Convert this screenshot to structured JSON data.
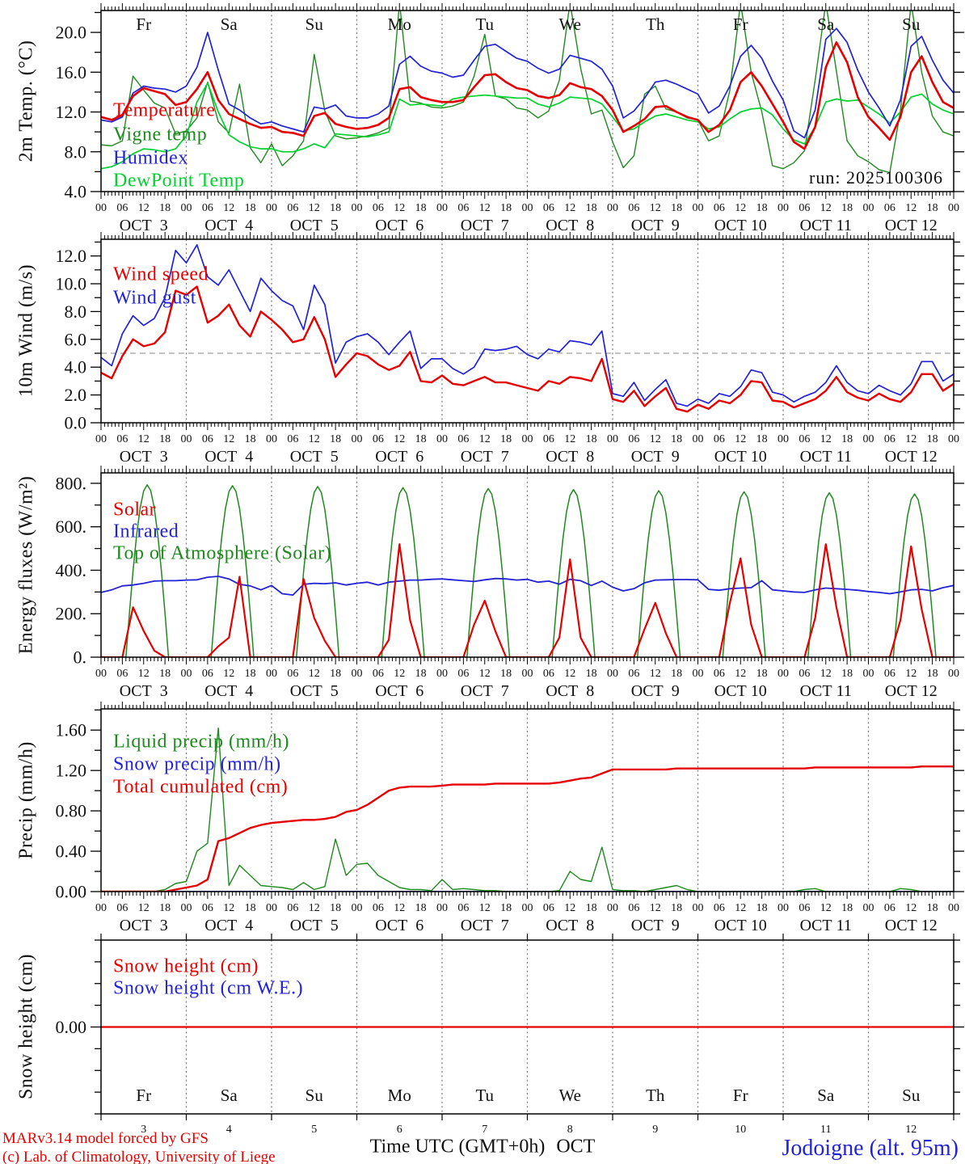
{
  "run_label": "run: 2025100306",
  "colors": {
    "red": "#e60000",
    "blue": "#2222d6",
    "dark_green": "#1e8a1e",
    "light_green": "#00d22d",
    "black": "#111111",
    "grid_gray": "#a0a0a0",
    "day_line": "#777777"
  },
  "footer": {
    "credit1": "MARv3.14 model forced by GFS",
    "credit2": "(c) Lab. of Climatology, University of Liege",
    "time_label": "Time UTC (GMT+0h)",
    "month": "OCT",
    "station": "Jodoigne (alt. 95m)"
  },
  "x_axis": {
    "total_hours": 240,
    "step_hours": 3,
    "hour_labels": [
      "00",
      "06",
      "12",
      "18"
    ],
    "end_label": "00",
    "days": [
      {
        "dow": "Fr",
        "date": "OCT  3",
        "num": "3",
        "weekend": false
      },
      {
        "dow": "Sa",
        "date": "OCT  4",
        "num": "4",
        "weekend": true
      },
      {
        "dow": "Su",
        "date": "OCT  5",
        "num": "5",
        "weekend": true
      },
      {
        "dow": "Mo",
        "date": "OCT  6",
        "num": "6",
        "weekend": false
      },
      {
        "dow": "Tu",
        "date": "OCT  7",
        "num": "7",
        "weekend": false
      },
      {
        "dow": "We",
        "date": "OCT  8",
        "num": "8",
        "weekend": false
      },
      {
        "dow": "Th",
        "date": "OCT  9",
        "num": "9",
        "weekend": false
      },
      {
        "dow": "Fr",
        "date": "OCT 10",
        "num": "10",
        "weekend": false
      },
      {
        "dow": "Sa",
        "date": "OCT 11",
        "num": "11",
        "weekend": true
      },
      {
        "dow": "Su",
        "date": "OCT 12",
        "num": "12",
        "weekend": true
      }
    ]
  },
  "chart_data": [
    {
      "id": "temp",
      "type": "line",
      "ylabel": "2m Temp. (°C)",
      "ylim": [
        4,
        22.2
      ],
      "ytick_step": 2,
      "ylabel_values": [
        4,
        8,
        12,
        16,
        20
      ],
      "ylabel_fmt": "fixed1",
      "draw_order": [
        1,
        3,
        2,
        0
      ],
      "series": [
        {
          "name": "Temperature",
          "color": "#e60000",
          "lw": 2.6,
          "values": [
            11.5,
            11.2,
            11.7,
            13.6,
            14.4,
            14.1,
            13.8,
            12.7,
            13.0,
            14.3,
            16.0,
            13.2,
            11.8,
            11.3,
            10.8,
            10.4,
            10.5,
            10.0,
            9.9,
            9.6,
            11.6,
            11.9,
            10.8,
            10.5,
            10.3,
            10.4,
            10.7,
            11.4,
            14.3,
            14.5,
            13.5,
            13.2,
            13.0,
            13.0,
            13.2,
            14.5,
            15.7,
            15.8,
            15.0,
            14.4,
            14.2,
            13.6,
            13.4,
            13.7,
            14.9,
            14.5,
            14.3,
            13.6,
            12.2,
            10.0,
            10.6,
            11.3,
            12.5,
            12.6,
            12.0,
            11.5,
            11.2,
            10.0,
            10.7,
            12.2,
            15.0,
            16.0,
            14.6,
            12.8,
            11.0,
            9.0,
            8.3,
            10.5,
            16.5,
            19.0,
            17.0,
            13.5,
            11.5,
            10.4,
            9.2,
            11.5,
            16.0,
            17.6,
            15.0,
            13.0,
            12.4
          ]
        },
        {
          "name": "Vigne temp",
          "color": "#1e8a1e",
          "lw": 1.4,
          "values": [
            8.7,
            8.6,
            9.1,
            15.6,
            14.2,
            12.9,
            12.4,
            9.8,
            10.1,
            11.4,
            15.0,
            11.0,
            9.9,
            14.8,
            8.4,
            6.9,
            8.8,
            6.6,
            7.6,
            9.1,
            17.8,
            12.1,
            9.6,
            9.3,
            9.4,
            9.6,
            9.9,
            10.4,
            23.0,
            13.1,
            12.9,
            12.5,
            12.4,
            12.6,
            13.0,
            15.6,
            19.8,
            13.6,
            13.3,
            12.4,
            12.2,
            11.4,
            12.1,
            15.2,
            23.0,
            16.4,
            11.8,
            12.2,
            9.0,
            6.4,
            7.6,
            13.8,
            14.6,
            12.3,
            12.0,
            11.4,
            11.2,
            9.1,
            9.6,
            14.2,
            23.0,
            16.0,
            12.0,
            6.6,
            6.3,
            6.9,
            8.1,
            15.2,
            23.0,
            16.1,
            9.1,
            7.6,
            7.0,
            6.2,
            5.9,
            12.1,
            23.0,
            16.0,
            11.6,
            10.0,
            9.6
          ]
        },
        {
          "name": "Humidex",
          "color": "#2222d6",
          "lw": 1.7,
          "values": [
            11.2,
            11.0,
            11.5,
            13.9,
            14.6,
            14.4,
            14.3,
            14.0,
            14.6,
            16.5,
            20.0,
            16.2,
            12.8,
            12.2,
            11.4,
            10.8,
            11.0,
            10.6,
            10.3,
            10.0,
            12.5,
            12.3,
            12.7,
            11.6,
            11.4,
            11.4,
            11.8,
            12.6,
            16.8,
            17.6,
            16.6,
            16.1,
            15.9,
            15.5,
            15.7,
            17.2,
            18.6,
            18.8,
            18.1,
            17.4,
            17.1,
            16.4,
            15.9,
            16.3,
            17.7,
            17.4,
            17.1,
            16.3,
            14.6,
            11.4,
            12.1,
            13.4,
            15.0,
            15.2,
            14.8,
            14.3,
            13.8,
            11.9,
            12.6,
            14.6,
            17.6,
            18.7,
            17.4,
            15.1,
            13.2,
            10.1,
            9.4,
            12.2,
            19.3,
            20.4,
            19.0,
            16.2,
            14.0,
            12.4,
            10.6,
            13.2,
            18.6,
            19.6,
            17.2,
            15.2,
            13.9
          ]
        },
        {
          "name": "DewPoint Temp",
          "color": "#00d22d",
          "lw": 1.7,
          "values": [
            6.3,
            6.5,
            7.0,
            7.8,
            8.3,
            8.2,
            8.0,
            8.3,
            9.6,
            13.0,
            14.9,
            12.0,
            9.7,
            9.0,
            8.5,
            8.3,
            8.3,
            8.0,
            8.0,
            8.3,
            8.8,
            8.4,
            9.8,
            9.7,
            9.6,
            9.5,
            9.7,
            10.0,
            13.3,
            12.7,
            12.8,
            12.7,
            12.6,
            13.3,
            13.5,
            13.6,
            13.7,
            13.6,
            13.5,
            13.4,
            13.4,
            12.8,
            12.5,
            12.9,
            13.5,
            13.4,
            13.3,
            12.8,
            11.5,
            10.1,
            10.3,
            11.0,
            11.6,
            11.8,
            11.5,
            11.2,
            11.0,
            10.3,
            10.5,
            11.3,
            12.0,
            12.3,
            12.4,
            11.7,
            10.3,
            9.2,
            8.8,
            10.5,
            13.0,
            13.3,
            13.1,
            13.2,
            12.5,
            11.8,
            10.9,
            12.0,
            13.5,
            13.8,
            12.8,
            12.2,
            11.8
          ]
        }
      ]
    },
    {
      "id": "wind",
      "type": "line",
      "ylabel": "10m Wind (m/s)",
      "ylim": [
        0,
        13.2
      ],
      "ytick_step": 1,
      "ylabel_values": [
        0,
        2,
        4,
        6,
        8,
        10,
        12
      ],
      "ylabel_fmt": "fixed1",
      "refline": 5.0,
      "draw_order": [
        1,
        0
      ],
      "series": [
        {
          "name": "Wind speed",
          "color": "#e60000",
          "lw": 2.4,
          "values": [
            3.6,
            3.2,
            4.8,
            6.0,
            5.5,
            5.7,
            6.5,
            9.5,
            9.2,
            9.8,
            7.2,
            7.7,
            8.5,
            7.0,
            6.2,
            8.0,
            7.4,
            6.7,
            5.8,
            6.0,
            7.6,
            6.0,
            3.3,
            4.2,
            5.0,
            4.8,
            4.2,
            3.8,
            4.1,
            5.1,
            3.0,
            2.9,
            3.4,
            2.8,
            2.7,
            3.0,
            3.3,
            2.9,
            2.9,
            2.7,
            2.5,
            2.3,
            3.0,
            2.8,
            3.3,
            3.2,
            3.0,
            4.6,
            1.7,
            1.5,
            2.3,
            1.2,
            1.9,
            2.5,
            1.0,
            0.8,
            1.3,
            1.0,
            1.6,
            1.4,
            2.0,
            3.0,
            2.9,
            1.6,
            1.5,
            1.1,
            1.4,
            1.7,
            2.3,
            3.3,
            2.2,
            1.8,
            1.6,
            2.1,
            1.7,
            1.5,
            2.2,
            3.5,
            3.5,
            2.3,
            2.8
          ]
        },
        {
          "name": "Wind gust",
          "color": "#2222d6",
          "lw": 1.7,
          "values": [
            4.7,
            4.1,
            6.4,
            7.7,
            7.0,
            7.5,
            9.0,
            12.4,
            11.5,
            12.8,
            10.5,
            9.9,
            11.0,
            9.5,
            8.0,
            10.4,
            9.5,
            8.8,
            8.4,
            6.7,
            9.9,
            8.5,
            4.3,
            5.8,
            6.2,
            6.4,
            5.8,
            4.9,
            5.8,
            6.6,
            3.9,
            4.6,
            4.6,
            3.9,
            3.5,
            4.0,
            5.3,
            5.2,
            5.3,
            5.5,
            4.9,
            4.6,
            5.3,
            5.1,
            5.9,
            5.8,
            5.6,
            6.6,
            2.1,
            1.9,
            2.9,
            1.6,
            2.4,
            3.1,
            1.4,
            1.2,
            1.7,
            1.4,
            2.1,
            1.9,
            2.6,
            3.8,
            3.6,
            2.2,
            2.0,
            1.5,
            1.9,
            2.2,
            2.9,
            4.1,
            2.9,
            2.3,
            2.1,
            2.7,
            2.3,
            2.0,
            2.8,
            4.4,
            4.4,
            3.0,
            3.5
          ]
        }
      ]
    },
    {
      "id": "energy",
      "type": "line",
      "ylabel": "Energy fluxes (W/m²)",
      "ylim": [
        0,
        848
      ],
      "ytick_step": 100,
      "ylabel_values": [
        0,
        200,
        400,
        600,
        800
      ],
      "ylabel_fmt": "int_dot",
      "draw_order": [
        2,
        1,
        0
      ],
      "series": [
        {
          "name": "Solar",
          "color": "#e60000",
          "lw": 2.2,
          "values": [
            0,
            0,
            0,
            230,
            120,
            30,
            0,
            0,
            0,
            0,
            0,
            50,
            90,
            370,
            0,
            0,
            0,
            0,
            0,
            360,
            180,
            75,
            0,
            0,
            0,
            0,
            0,
            80,
            520,
            170,
            0,
            0,
            0,
            0,
            0,
            150,
            260,
            120,
            0,
            0,
            0,
            0,
            0,
            90,
            450,
            90,
            0,
            0,
            0,
            0,
            0,
            130,
            250,
            110,
            0,
            0,
            0,
            0,
            0,
            250,
            455,
            150,
            0,
            0,
            0,
            0,
            0,
            180,
            520,
            230,
            0,
            0,
            0,
            0,
            0,
            170,
            510,
            220,
            0,
            0,
            0
          ]
        },
        {
          "name": "Infrared",
          "color": "#2222d6",
          "lw": 1.8,
          "values": [
            298,
            310,
            328,
            332,
            340,
            350,
            352,
            352,
            355,
            356,
            368,
            372,
            360,
            335,
            328,
            310,
            330,
            292,
            286,
            335,
            340,
            338,
            342,
            332,
            340,
            345,
            332,
            345,
            350,
            355,
            355,
            358,
            360,
            356,
            352,
            348,
            356,
            362,
            360,
            355,
            358,
            345,
            350,
            336,
            358,
            352,
            330,
            350,
            322,
            305,
            315,
            342,
            355,
            356,
            357,
            357,
            356,
            312,
            308,
            315,
            318,
            320,
            352,
            310,
            305,
            300,
            298,
            310,
            318,
            315,
            312,
            308,
            302,
            298,
            292,
            300,
            310,
            312,
            305,
            320,
            330
          ]
        },
        {
          "name": "Top of Atmosphere (Solar)",
          "color": "#1e8a1e",
          "lw": 1.5,
          "generator": {
            "type": "solar_bell",
            "sunrise": 7.0,
            "sunset": 19.0,
            "daily_peaks": [
              793,
              789,
              785,
              780,
              776,
              771,
              766,
              761,
              756,
              751
            ]
          }
        }
      ]
    },
    {
      "id": "precip",
      "type": "line",
      "ylabel": "Precip (mm/h)",
      "ylim": [
        0,
        1.81
      ],
      "ytick_step": 0.2,
      "ylabel_values": [
        0,
        0.4,
        0.8,
        1.2,
        1.6
      ],
      "ylabel_fmt": "fixed2",
      "draw_order": [
        1,
        0,
        2
      ],
      "series": [
        {
          "name": "Liquid precip (mm/h)",
          "color": "#1e8a1e",
          "lw": 1.4,
          "values": [
            0,
            0,
            0,
            0,
            0,
            0,
            0.02,
            0.08,
            0.1,
            0.4,
            0.48,
            1.62,
            0.06,
            0.26,
            0.16,
            0.06,
            0.05,
            0.04,
            0.02,
            0.09,
            0.02,
            0.05,
            0.52,
            0.16,
            0.27,
            0.28,
            0.16,
            0.1,
            0.04,
            0.02,
            0.02,
            0.01,
            0.12,
            0.02,
            0.03,
            0.02,
            0.01,
            0.01,
            0,
            0,
            0,
            0,
            0,
            0.01,
            0.2,
            0.12,
            0.1,
            0.44,
            0.02,
            0.01,
            0.01,
            0,
            0.02,
            0.04,
            0.06,
            0.02,
            0,
            0,
            0,
            0,
            0,
            0,
            0,
            0,
            0,
            0,
            0.02,
            0.03,
            0,
            0,
            0,
            0,
            0,
            0,
            0,
            0.03,
            0.02,
            0,
            0,
            0,
            0
          ]
        },
        {
          "name": "Snow precip (mm/h)",
          "color": "#2222d6",
          "lw": 1.7,
          "const": 0
        },
        {
          "name": "Total cumulated (cm)",
          "color": "#e60000",
          "lw": 2.4,
          "values": [
            0,
            0,
            0,
            0,
            0,
            0,
            0.0,
            0.02,
            0.04,
            0.06,
            0.12,
            0.5,
            0.53,
            0.58,
            0.63,
            0.66,
            0.68,
            0.69,
            0.7,
            0.71,
            0.71,
            0.72,
            0.74,
            0.79,
            0.81,
            0.86,
            0.93,
            1.0,
            1.03,
            1.04,
            1.04,
            1.04,
            1.05,
            1.06,
            1.06,
            1.06,
            1.06,
            1.07,
            1.07,
            1.07,
            1.07,
            1.07,
            1.07,
            1.08,
            1.1,
            1.12,
            1.13,
            1.17,
            1.21,
            1.21,
            1.21,
            1.21,
            1.21,
            1.21,
            1.22,
            1.22,
            1.22,
            1.22,
            1.22,
            1.22,
            1.22,
            1.22,
            1.22,
            1.22,
            1.22,
            1.22,
            1.22,
            1.23,
            1.23,
            1.23,
            1.23,
            1.23,
            1.23,
            1.23,
            1.23,
            1.23,
            1.23,
            1.24,
            1.24,
            1.24,
            1.24
          ]
        }
      ]
    },
    {
      "id": "snow",
      "type": "line",
      "ylabel": "Snow height (cm)",
      "ylim": [
        -1,
        1
      ],
      "ytick_step": 0.25,
      "ylabel_values": [
        0
      ],
      "ylabel_fmt": "fixed2",
      "draw_order": [
        1,
        0
      ],
      "series": [
        {
          "name": "Snow height (cm)",
          "color": "#e60000",
          "lw": 2.3,
          "const": 0
        },
        {
          "name": "Snow height (cm W.E.)",
          "color": "#2222d6",
          "lw": 1.6,
          "const": 0
        }
      ]
    }
  ]
}
